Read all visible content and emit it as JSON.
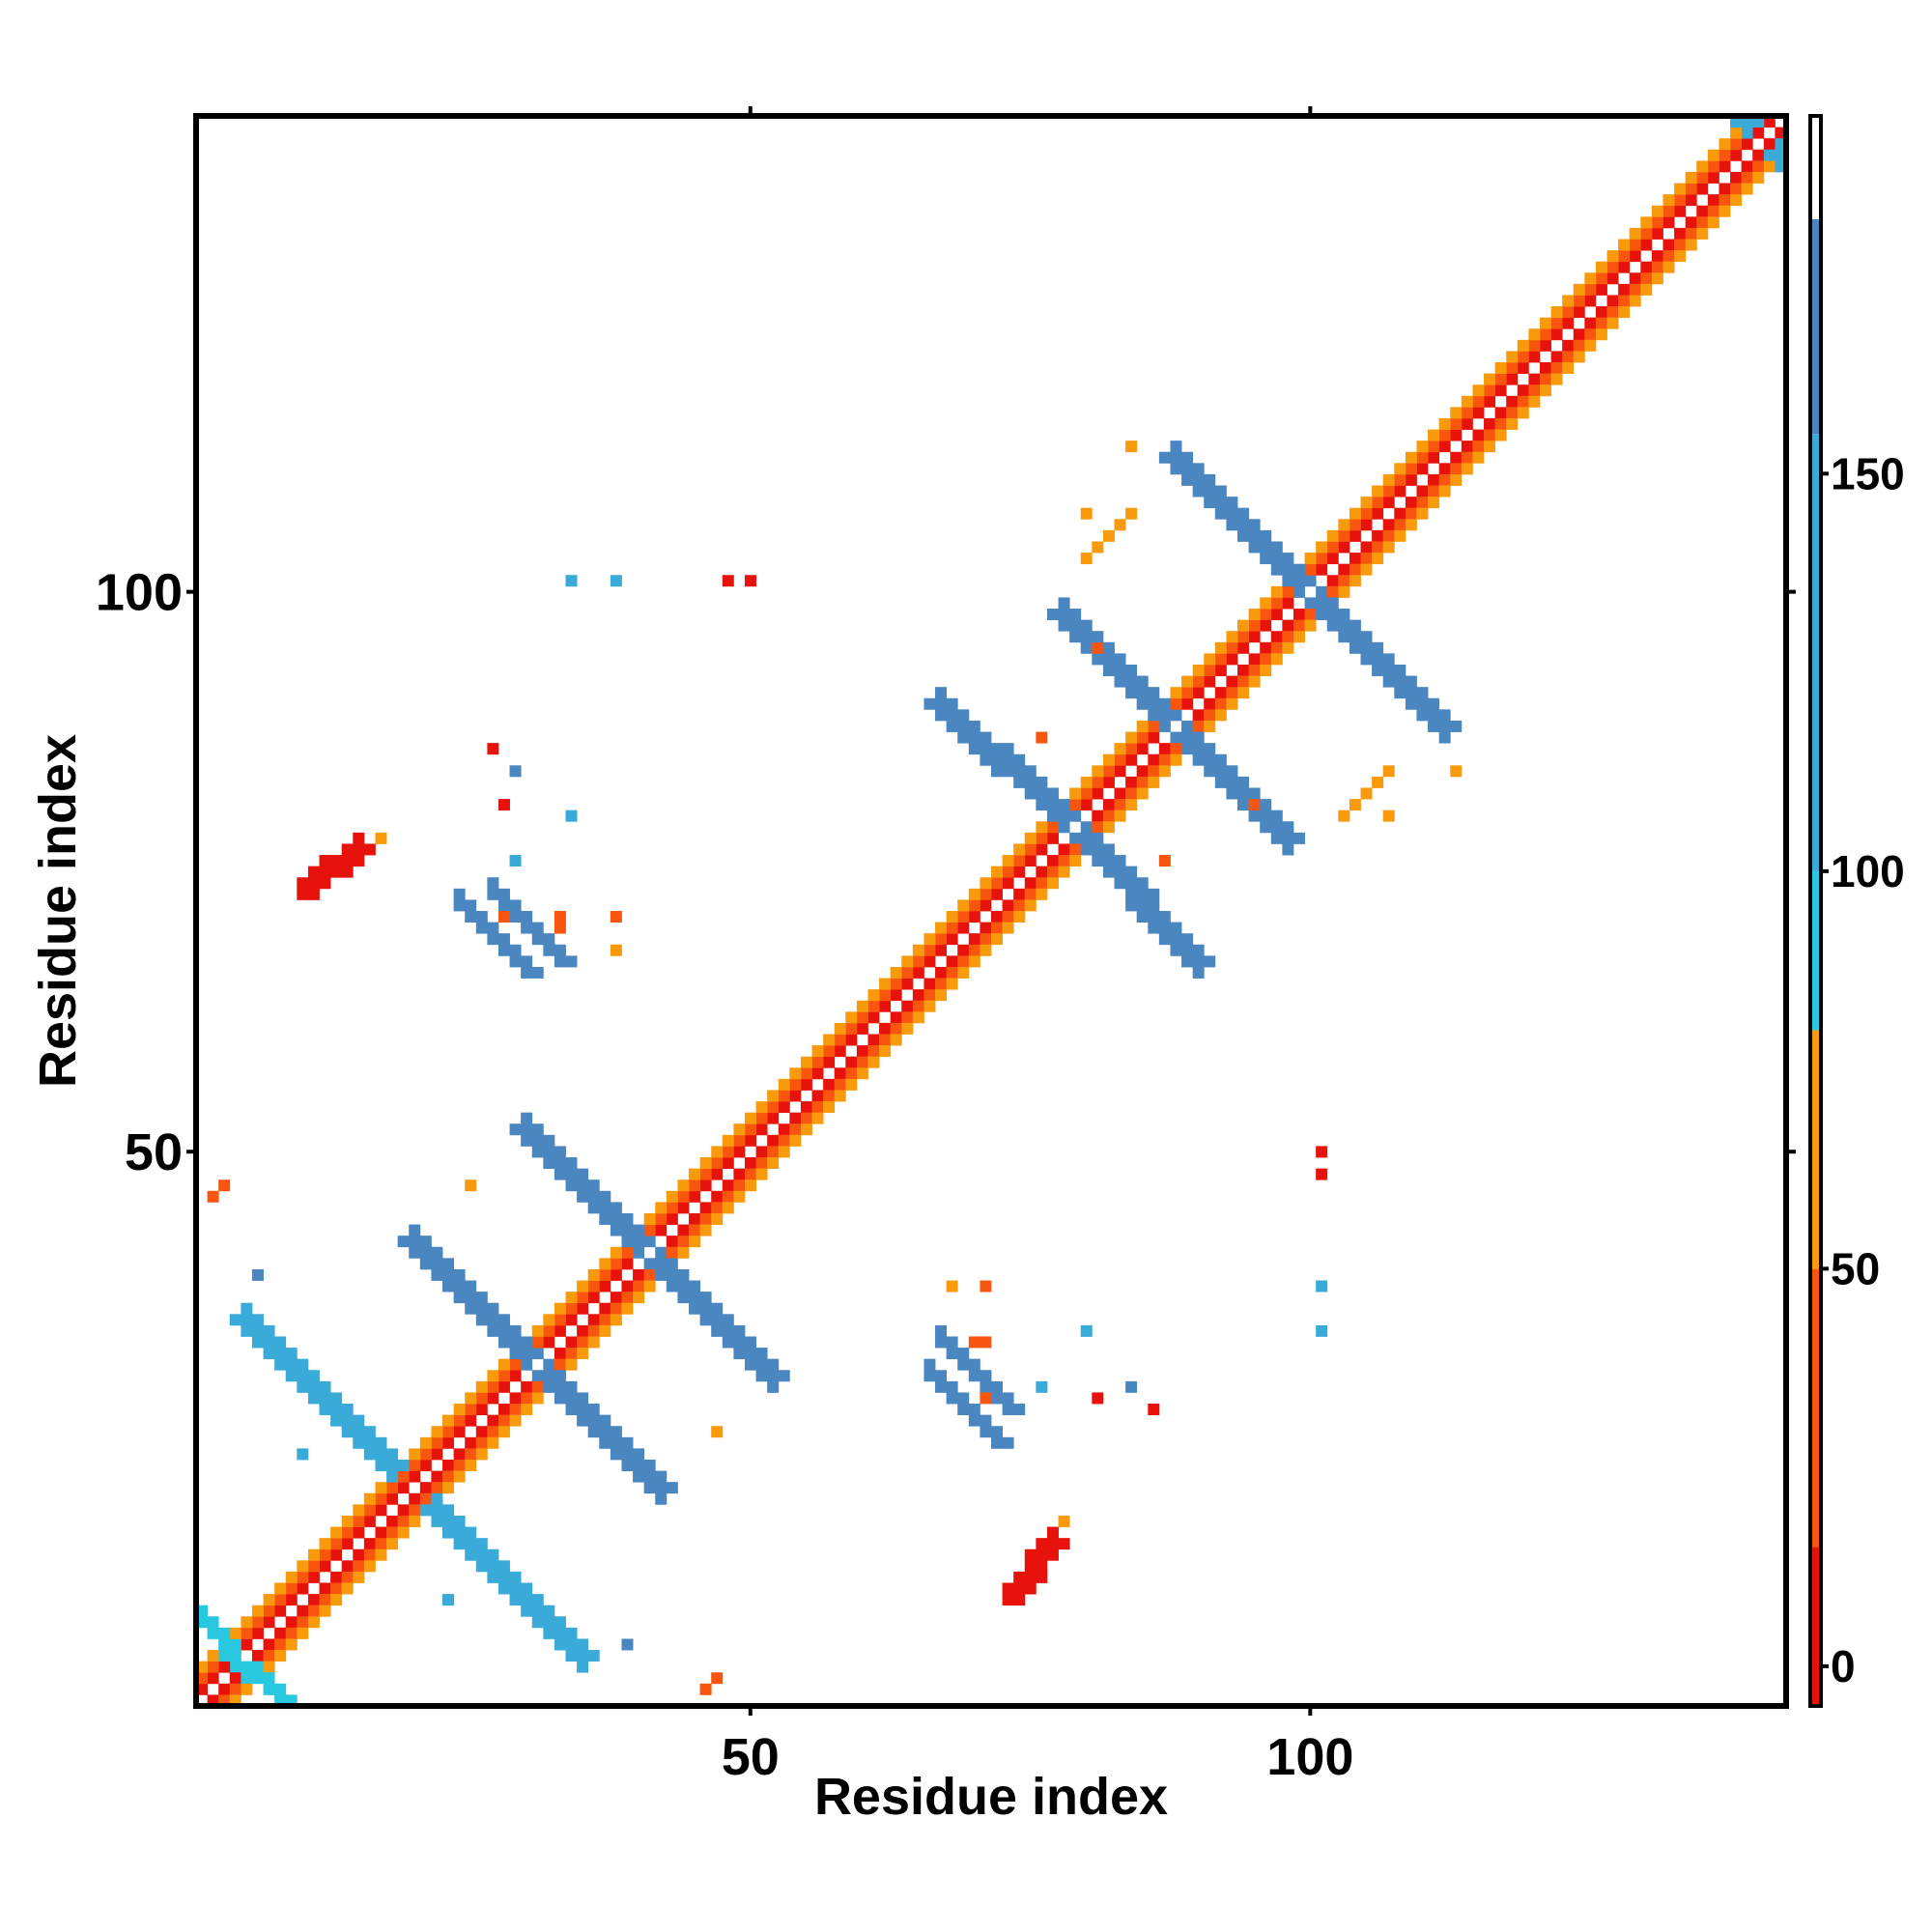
{
  "chart_data": {
    "type": "heatmap",
    "description_axes": "contact map",
    "title": "",
    "xlabel": "Residue index",
    "ylabel": "Residue index",
    "xlim": [
      1,
      142
    ],
    "ylim": [
      1,
      142
    ],
    "x_ticks": [
      50,
      100
    ],
    "y_ticks": [
      50,
      100
    ],
    "colorbar": {
      "ticks": [
        0,
        50,
        100,
        150
      ],
      "range": [
        -5,
        195
      ],
      "bands": [
        {
          "from": -5,
          "to": 15,
          "color": "#e8120c"
        },
        {
          "from": 15,
          "to": 50,
          "color": "#f8560f"
        },
        {
          "from": 50,
          "to": 80,
          "color": "#f89a0c"
        },
        {
          "from": 80,
          "to": 100,
          "color": "#28c8e0"
        },
        {
          "from": 100,
          "to": 155,
          "color": "#3aaad8"
        },
        {
          "from": 155,
          "to": 182,
          "color": "#4a86c0"
        },
        {
          "from": 182,
          "to": 195,
          "color": "#ffffff"
        }
      ]
    },
    "colors": {
      "red": "#e8120c",
      "orange_red": "#f8560f",
      "orange": "#f89a0c",
      "cyan": "#28d4e8",
      "light_blue": "#3aaad8",
      "steel_blue": "#4a86c0"
    },
    "segments": [
      {
        "from": [
          1,
          1
        ],
        "to": [
          142,
          142
        ],
        "width": 1,
        "value": 190
      },
      {
        "from": [
          1,
          2
        ],
        "to": [
          141,
          142
        ],
        "width": 1,
        "value": 0
      },
      {
        "from": [
          2,
          1
        ],
        "to": [
          142,
          141
        ],
        "width": 1,
        "value": 0
      },
      {
        "from": [
          1,
          3
        ],
        "to": [
          140,
          142
        ],
        "width": 1,
        "value": 35
      },
      {
        "from": [
          3,
          1
        ],
        "to": [
          142,
          140
        ],
        "width": 1,
        "value": 35
      },
      {
        "from": [
          1,
          4
        ],
        "to": [
          139,
          142
        ],
        "width": 1,
        "value": 65
      },
      {
        "from": [
          4,
          1
        ],
        "to": [
          142,
          139
        ],
        "width": 1,
        "value": 65
      },
      {
        "from": [
          18,
          22
        ],
        "to": [
          5,
          35
        ],
        "width": 3,
        "value": 140
      },
      {
        "from": [
          22,
          18
        ],
        "to": [
          35,
          5
        ],
        "width": 3,
        "value": 140
      },
      {
        "from": [
          3,
          5
        ],
        "to": [
          8,
          1
        ],
        "width": 2,
        "value": 90
      },
      {
        "from": [
          5,
          3
        ],
        "to": [
          1,
          8
        ],
        "width": 2,
        "value": 90
      },
      {
        "from": [
          30,
          32
        ],
        "to": [
          20,
          42
        ],
        "width": 3,
        "value": 165
      },
      {
        "from": [
          32,
          30
        ],
        "to": [
          42,
          20
        ],
        "width": 3,
        "value": 165
      },
      {
        "from": [
          40,
          42
        ],
        "to": [
          30,
          52
        ],
        "width": 3,
        "value": 165
      },
      {
        "from": [
          42,
          40
        ],
        "to": [
          52,
          30
        ],
        "width": 3,
        "value": 165
      },
      {
        "from": [
          78,
          80
        ],
        "to": [
          67,
          90
        ],
        "width": 3,
        "value": 165
      },
      {
        "from": [
          80,
          78
        ],
        "to": [
          90,
          67
        ],
        "width": 3,
        "value": 165
      },
      {
        "from": [
          87,
          89
        ],
        "to": [
          78,
          98
        ],
        "width": 3,
        "value": 165
      },
      {
        "from": [
          89,
          87
        ],
        "to": [
          98,
          78
        ],
        "width": 3,
        "value": 165
      },
      {
        "from": [
          99,
          101
        ],
        "to": [
          88,
          112
        ],
        "width": 3,
        "value": 165
      },
      {
        "from": [
          101,
          99
        ],
        "to": [
          112,
          88
        ],
        "width": 3,
        "value": 165
      },
      {
        "from": [
          139,
          142
        ],
        "to": [
          136,
          145
        ],
        "width": 3,
        "value": 140
      },
      {
        "from": [
          142,
          139
        ],
        "to": [
          145,
          136
        ],
        "width": 3,
        "value": 140
      },
      {
        "from": [
          10,
          73
        ],
        "to": [
          15,
          77
        ],
        "width": 2,
        "value": 0
      },
      {
        "from": [
          73,
          10
        ],
        "to": [
          77,
          15
        ],
        "width": 2,
        "value": 0
      },
      {
        "from": [
          24,
          72
        ],
        "to": [
          30,
          66
        ],
        "width": 2,
        "value": 160
      },
      {
        "from": [
          72,
          24
        ],
        "to": [
          66,
          30
        ],
        "width": 2,
        "value": 160
      },
      {
        "from": [
          67,
          33
        ],
        "to": [
          73,
          27
        ],
        "width": 2,
        "value": 160
      },
      {
        "from": [
          33,
          67
        ],
        "to": [
          27,
          73
        ],
        "width": 2,
        "value": 160
      },
      {
        "from": [
          80,
          103
        ],
        "to": [
          84,
          107
        ],
        "width": 1,
        "value": 50
      },
      {
        "from": [
          103,
          80
        ],
        "to": [
          107,
          84
        ],
        "width": 1,
        "value": 50
      }
    ],
    "spots": [
      [
        68,
        38,
        65
      ],
      [
        38,
        68,
        65
      ],
      [
        70,
        33,
        35
      ],
      [
        33,
        70,
        35
      ],
      [
        25,
        47,
        65
      ],
      [
        47,
        25,
        65
      ],
      [
        101,
        50,
        0
      ],
      [
        50,
        101,
        0
      ],
      [
        48,
        101,
        0
      ],
      [
        101,
        48,
        0
      ],
      [
        101,
        38,
        120
      ],
      [
        38,
        101,
        120
      ],
      [
        34,
        101,
        120
      ],
      [
        101,
        34,
        120
      ],
      [
        80,
        107,
        65
      ],
      [
        107,
        80,
        65
      ],
      [
        84,
        113,
        60
      ],
      [
        113,
        84,
        60
      ],
      [
        95,
        81,
        35
      ],
      [
        81,
        95,
        35
      ],
      [
        87,
        76,
        35
      ],
      [
        76,
        87,
        35
      ],
      [
        34,
        80,
        120
      ],
      [
        80,
        34,
        120
      ],
      [
        28,
        81,
        0
      ],
      [
        81,
        28,
        0
      ],
      [
        28,
        71,
        35
      ],
      [
        71,
        28,
        35
      ],
      [
        33,
        71,
        35
      ],
      [
        71,
        33,
        35
      ],
      [
        84,
        29,
        160
      ],
      [
        29,
        84,
        160
      ],
      [
        86,
        27,
        0
      ],
      [
        27,
        86,
        0
      ],
      [
        78,
        17,
        60
      ],
      [
        17,
        78,
        60
      ],
      [
        6,
        39,
        160
      ],
      [
        39,
        6,
        160
      ],
      [
        3,
        47,
        35
      ],
      [
        47,
        3,
        35
      ],
      [
        46,
        2,
        35
      ],
      [
        2,
        46,
        35
      ],
      [
        76,
        29,
        110
      ],
      [
        29,
        76,
        110
      ],
      [
        38,
        71,
        45
      ],
      [
        71,
        38,
        45
      ],
      [
        23,
        10,
        140
      ],
      [
        10,
        23,
        140
      ]
    ]
  }
}
